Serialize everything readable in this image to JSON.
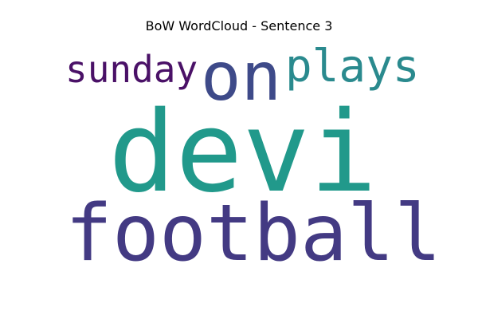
{
  "title": "BoW WordCloud - Sentence 3",
  "words": [
    {
      "text": "sunday",
      "color": "#4a1167"
    },
    {
      "text": "on",
      "color": "#3e4a89"
    },
    {
      "text": "plays",
      "color": "#2a8a8e"
    },
    {
      "text": "devi",
      "color": "#21998b"
    },
    {
      "text": "football",
      "color": "#433a83"
    }
  ]
}
